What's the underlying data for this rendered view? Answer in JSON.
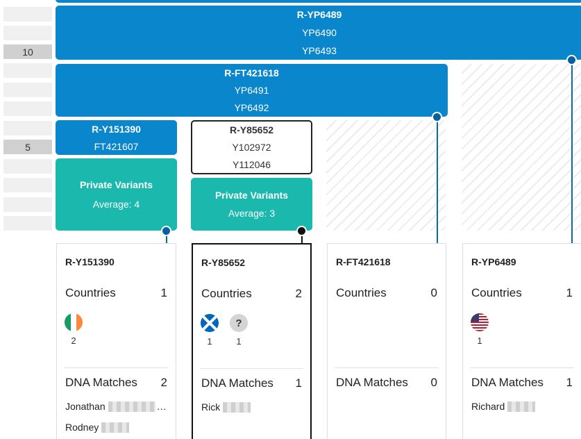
{
  "scale": {
    "labels": [
      "10",
      "5"
    ]
  },
  "blocks": {
    "yp6489": {
      "variants": [
        "R-YP6489",
        "YP6490",
        "YP6493"
      ]
    },
    "ft421618": {
      "variants": [
        "R-FT421618",
        "YP6491",
        "YP6492"
      ]
    },
    "y151390": {
      "variants": [
        "R-Y151390",
        "FT421607"
      ]
    },
    "y85652": {
      "variants": [
        "R-Y85652",
        "Y102972",
        "Y112046"
      ]
    }
  },
  "private": [
    {
      "title": "Private Variants",
      "average": "Average: 4"
    },
    {
      "title": "Private Variants",
      "average": "Average: 3"
    }
  ],
  "labels": {
    "countries": "Countries",
    "dna_matches": "DNA Matches"
  },
  "cards": [
    {
      "title": "R-Y151390",
      "countries_count": "1",
      "flags": [
        {
          "icon": "ireland-flag-icon",
          "count": "2"
        }
      ],
      "dna_count": "2",
      "members": [
        "Jonathan",
        "Rodney"
      ],
      "member_suffix": [
        "…",
        ""
      ]
    },
    {
      "title": "R-Y85652",
      "countries_count": "2",
      "flags": [
        {
          "icon": "scotland-flag-icon",
          "count": "1"
        },
        {
          "icon": "unknown-country-icon",
          "symbol": "?",
          "count": "1"
        }
      ],
      "dna_count": "1",
      "members": [
        "Rick"
      ]
    },
    {
      "title": "R-FT421618",
      "countries_count": "0",
      "flags": [],
      "dna_count": "0",
      "members": []
    },
    {
      "title": "R-YP6489",
      "countries_count": "1",
      "flags": [
        {
          "icon": "usa-flag-icon",
          "count": "1"
        }
      ],
      "dna_count": "1",
      "members": [
        "Richard"
      ]
    }
  ],
  "colors": {
    "block_blue": "#0a87cc",
    "private_teal": "#1bb8ad",
    "connector_blue": "#0a5fa0"
  }
}
